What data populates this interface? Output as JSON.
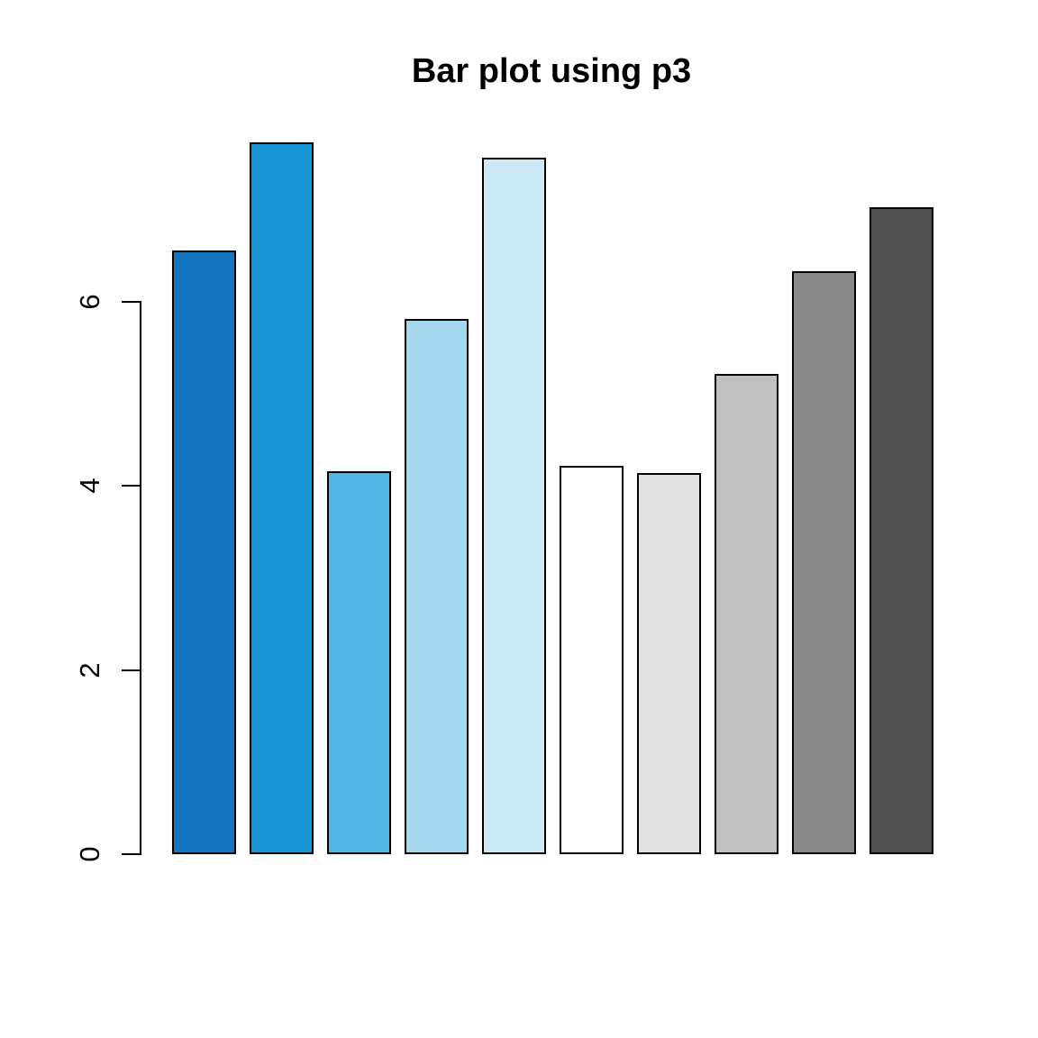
{
  "chart_data": {
    "type": "bar",
    "title": "Bar plot using p3",
    "categories": [
      "",
      "",
      "",
      "",
      "",
      "",
      "",
      "",
      "",
      ""
    ],
    "values": [
      6.56,
      7.73,
      4.16,
      5.81,
      7.56,
      4.22,
      4.14,
      5.22,
      6.33,
      7.03
    ],
    "bar_colors": [
      "#1476C0",
      "#1896D6",
      "#4FB6E6",
      "#A3D8EF",
      "#CCE9F6",
      "#FFFFFF",
      "#E1E1E1",
      "#C1C1C1",
      "#898989",
      "#515151"
    ],
    "bar_border_color": "#000000",
    "xlabel": "",
    "ylabel": "",
    "yticks": [
      "0",
      "2",
      "4",
      "6"
    ],
    "ytick_values": [
      0,
      2,
      4,
      6
    ],
    "ylim": [
      0,
      7.8
    ],
    "grid": false,
    "legend_position": "none",
    "background_color": "#FFFFFF",
    "axis_color": "#000000"
  }
}
